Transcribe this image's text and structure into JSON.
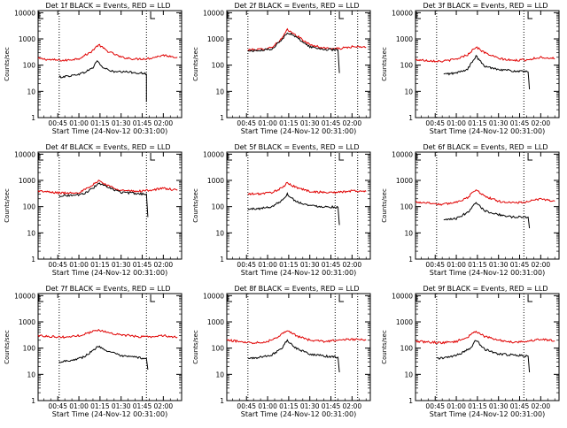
{
  "shared": {
    "ylabel": "Counts/sec",
    "xlabel": "Start Time (24-Nov-12 00:31:00)",
    "yticks": [
      "1",
      "10",
      "100",
      "1000",
      "10000"
    ],
    "xticks": [
      "00:45",
      "01:00",
      "01:15",
      "01:30",
      "01:45",
      "02:00"
    ],
    "colors": {
      "black_series": "#000000",
      "red_series": "#e00000"
    }
  },
  "chart_data": [
    {
      "type": "line",
      "title": "Det 1f BLACK = Events, RED = LLD",
      "xlabel": "Start Time (24-Nov-12 00:31:00)",
      "ylabel": "Counts/sec",
      "scale": "log-y",
      "ylim": [
        1,
        12000
      ],
      "xlim": [
        "00:31",
        "02:13"
      ],
      "flag_box_at": "01:51",
      "markers_dotted_at": [
        "00:46",
        "01:48"
      ],
      "series": [
        {
          "name": "BLACK = Events",
          "color": "#000000",
          "x": [
            "00:46",
            "00:55",
            "01:03",
            "01:10",
            "01:13",
            "01:17",
            "01:25",
            "01:35",
            "01:47",
            "01:48",
            "01:48"
          ],
          "y": [
            35,
            40,
            50,
            80,
            150,
            80,
            55,
            55,
            48,
            45,
            4
          ]
        },
        {
          "name": "RED = LLD",
          "color": "#e00000",
          "x": [
            "00:31",
            "00:40",
            "00:50",
            "01:00",
            "01:08",
            "01:14",
            "01:20",
            "01:30",
            "01:40",
            "01:50",
            "02:00",
            "02:10"
          ],
          "y": [
            180,
            160,
            150,
            180,
            300,
            600,
            350,
            200,
            170,
            180,
            240,
            200
          ]
        }
      ]
    },
    {
      "type": "line",
      "title": "Det 2f BLACK = Events, RED = LLD",
      "xlabel": "Start Time (24-Nov-12 00:31:00)",
      "ylabel": "Counts/sec",
      "scale": "log-y",
      "ylim": [
        1,
        12000
      ],
      "xlim": [
        "00:31",
        "02:13"
      ],
      "flag_box_at": "01:51",
      "markers_dotted_at": [
        "00:46",
        "01:48",
        "02:04"
      ],
      "series": [
        {
          "name": "BLACK = Events",
          "color": "#000000",
          "x": [
            "00:46",
            "00:55",
            "01:03",
            "01:10",
            "01:14",
            "01:20",
            "01:30",
            "01:40",
            "01:50",
            "01:51"
          ],
          "y": [
            350,
            360,
            420,
            900,
            1800,
            1200,
            500,
            400,
            380,
            50
          ]
        },
        {
          "name": "RED = LLD",
          "color": "#e00000",
          "x": [
            "00:46",
            "00:55",
            "01:03",
            "01:10",
            "01:14",
            "01:20",
            "01:30",
            "01:40",
            "01:50",
            "02:00",
            "02:10"
          ],
          "y": [
            380,
            400,
            480,
            1000,
            2200,
            1400,
            600,
            450,
            420,
            500,
            480
          ]
        }
      ]
    },
    {
      "type": "line",
      "title": "Det 3f BLACK = Events, RED = LLD",
      "xlabel": "Start Time (24-Nov-12 00:31:00)",
      "ylabel": "Counts/sec",
      "scale": "log-y",
      "ylim": [
        1,
        12000
      ],
      "xlim": [
        "00:31",
        "02:13"
      ],
      "flag_box_at": "01:51",
      "markers_dotted_at": [
        "00:46",
        "01:48"
      ],
      "series": [
        {
          "name": "BLACK = Events",
          "color": "#000000",
          "x": [
            "00:51",
            "01:00",
            "01:08",
            "01:14",
            "01:20",
            "01:30",
            "01:40",
            "01:51",
            "01:52"
          ],
          "y": [
            45,
            50,
            70,
            220,
            90,
            70,
            60,
            55,
            12
          ]
        },
        {
          "name": "RED = LLD",
          "color": "#e00000",
          "x": [
            "00:31",
            "00:40",
            "00:50",
            "01:00",
            "01:08",
            "01:14",
            "01:20",
            "01:30",
            "01:40",
            "01:50",
            "02:00",
            "02:10"
          ],
          "y": [
            160,
            150,
            140,
            170,
            250,
            500,
            300,
            180,
            150,
            160,
            200,
            180
          ]
        }
      ]
    },
    {
      "type": "line",
      "title": "Det 4f BLACK = Events, RED = LLD",
      "xlabel": "Start Time (24-Nov-12 00:31:00)",
      "ylabel": "Counts/sec",
      "scale": "log-y",
      "ylim": [
        1,
        12000
      ],
      "xlim": [
        "00:31",
        "02:13"
      ],
      "flag_box_at": "01:51",
      "markers_dotted_at": [
        "00:46",
        "01:48"
      ],
      "series": [
        {
          "name": "BLACK = Events",
          "color": "#000000",
          "x": [
            "00:46",
            "00:55",
            "01:03",
            "01:10",
            "01:14",
            "01:20",
            "01:30",
            "01:40",
            "01:48",
            "01:49"
          ],
          "y": [
            260,
            270,
            300,
            500,
            800,
            550,
            350,
            320,
            300,
            40
          ]
        },
        {
          "name": "RED = LLD",
          "color": "#e00000",
          "x": [
            "00:31",
            "00:40",
            "00:50",
            "01:00",
            "01:08",
            "01:14",
            "01:20",
            "01:30",
            "01:40",
            "01:50",
            "02:00",
            "02:10"
          ],
          "y": [
            400,
            350,
            330,
            350,
            550,
            1000,
            650,
            420,
            380,
            420,
            500,
            420
          ]
        }
      ]
    },
    {
      "type": "line",
      "title": "Det 5f BLACK = Events, RED = LLD",
      "xlabel": "Start Time (24-Nov-12 00:31:00)",
      "ylabel": "Counts/sec",
      "scale": "log-y",
      "ylim": [
        1,
        12000
      ],
      "xlim": [
        "00:31",
        "02:13"
      ],
      "flag_box_at": "01:51",
      "markers_dotted_at": [
        "00:46",
        "01:48",
        "02:04"
      ],
      "series": [
        {
          "name": "BLACK = Events",
          "color": "#000000",
          "x": [
            "00:46",
            "00:55",
            "01:03",
            "01:10",
            "01:14",
            "01:20",
            "01:30",
            "01:40",
            "01:50",
            "01:51"
          ],
          "y": [
            80,
            85,
            100,
            170,
            300,
            160,
            110,
            100,
            95,
            20
          ]
        },
        {
          "name": "RED = LLD",
          "color": "#e00000",
          "x": [
            "00:46",
            "00:55",
            "01:03",
            "01:10",
            "01:14",
            "01:20",
            "01:30",
            "01:40",
            "01:50",
            "02:00",
            "02:10"
          ],
          "y": [
            300,
            310,
            350,
            500,
            800,
            550,
            380,
            350,
            350,
            400,
            380
          ]
        }
      ]
    },
    {
      "type": "line",
      "title": "Det 6f BLACK = Events, RED = LLD",
      "xlabel": "Start Time (24-Nov-12 00:31:00)",
      "ylabel": "Counts/sec",
      "scale": "log-y",
      "ylim": [
        1,
        12000
      ],
      "xlim": [
        "00:31",
        "02:13"
      ],
      "flag_box_at": "01:51",
      "markers_dotted_at": [
        "00:46",
        "01:48"
      ],
      "series": [
        {
          "name": "BLACK = Events",
          "color": "#000000",
          "x": [
            "00:51",
            "01:00",
            "01:08",
            "01:14",
            "01:20",
            "01:30",
            "01:40",
            "01:51",
            "01:52"
          ],
          "y": [
            30,
            35,
            60,
            150,
            70,
            50,
            40,
            40,
            15
          ]
        },
        {
          "name": "RED = LLD",
          "color": "#e00000",
          "x": [
            "00:31",
            "00:40",
            "00:50",
            "01:00",
            "01:08",
            "01:14",
            "01:20",
            "01:30",
            "01:40",
            "01:50",
            "02:00",
            "02:10"
          ],
          "y": [
            150,
            140,
            120,
            150,
            220,
            450,
            250,
            160,
            140,
            150,
            200,
            160
          ]
        }
      ]
    },
    {
      "type": "line",
      "title": "Det 7f BLACK = Events, RED = LLD",
      "xlabel": "Start Time (24-Nov-12 00:31:00)",
      "ylabel": "Counts/sec",
      "scale": "log-y",
      "ylim": [
        1,
        12000
      ],
      "xlim": [
        "00:31",
        "02:13"
      ],
      "flag_box_at": "01:51",
      "markers_dotted_at": [
        "00:46",
        "01:48"
      ],
      "series": [
        {
          "name": "BLACK = Events",
          "color": "#000000",
          "x": [
            "00:46",
            "00:55",
            "01:03",
            "01:10",
            "01:14",
            "01:20",
            "01:30",
            "01:40",
            "01:48",
            "01:49"
          ],
          "y": [
            30,
            35,
            45,
            80,
            120,
            80,
            50,
            45,
            40,
            15
          ]
        },
        {
          "name": "RED = LLD",
          "color": "#e00000",
          "x": [
            "00:31",
            "00:40",
            "00:50",
            "01:00",
            "01:08",
            "01:14",
            "01:20",
            "01:30",
            "01:40",
            "01:50",
            "02:00",
            "02:10"
          ],
          "y": [
            300,
            280,
            260,
            300,
            400,
            500,
            400,
            320,
            280,
            270,
            300,
            260
          ]
        }
      ]
    },
    {
      "type": "line",
      "title": "Det 8f BLACK = Events, RED = LLD",
      "xlabel": "Start Time (24-Nov-12 00:31:00)",
      "ylabel": "Counts/sec",
      "scale": "log-y",
      "ylim": [
        1,
        12000
      ],
      "xlim": [
        "00:31",
        "02:13"
      ],
      "flag_box_at": "01:51",
      "markers_dotted_at": [
        "00:46",
        "01:48",
        "02:04"
      ],
      "series": [
        {
          "name": "BLACK = Events",
          "color": "#000000",
          "x": [
            "00:46",
            "00:55",
            "01:03",
            "01:10",
            "01:14",
            "01:20",
            "01:30",
            "01:40",
            "01:50",
            "01:51"
          ],
          "y": [
            40,
            45,
            55,
            100,
            200,
            100,
            60,
            50,
            45,
            12
          ]
        },
        {
          "name": "RED = LLD",
          "color": "#e00000",
          "x": [
            "00:31",
            "00:40",
            "00:50",
            "01:00",
            "01:08",
            "01:14",
            "01:20",
            "01:30",
            "01:40",
            "01:50",
            "02:00",
            "02:10"
          ],
          "y": [
            200,
            180,
            160,
            180,
            280,
            500,
            300,
            200,
            180,
            200,
            220,
            200
          ]
        }
      ]
    },
    {
      "type": "line",
      "title": "Det 9f BLACK = Events, RED = LLD",
      "xlabel": "Start Time (24-Nov-12 00:31:00)",
      "ylabel": "Counts/sec",
      "scale": "log-y",
      "ylim": [
        1,
        12000
      ],
      "xlim": [
        "00:31",
        "02:13"
      ],
      "flag_box_at": "01:51",
      "markers_dotted_at": [
        "00:46",
        "01:48"
      ],
      "series": [
        {
          "name": "BLACK = Events",
          "color": "#000000",
          "x": [
            "00:46",
            "00:55",
            "01:03",
            "01:10",
            "01:14",
            "01:20",
            "01:30",
            "01:40",
            "01:51",
            "01:52"
          ],
          "y": [
            40,
            45,
            60,
            100,
            200,
            90,
            60,
            55,
            50,
            12
          ]
        },
        {
          "name": "RED = LLD",
          "color": "#e00000",
          "x": [
            "00:31",
            "00:40",
            "00:50",
            "01:00",
            "01:08",
            "01:14",
            "01:20",
            "01:30",
            "01:40",
            "01:50",
            "02:00",
            "02:10"
          ],
          "y": [
            180,
            170,
            160,
            180,
            260,
            450,
            280,
            200,
            170,
            180,
            220,
            190
          ]
        }
      ]
    }
  ]
}
